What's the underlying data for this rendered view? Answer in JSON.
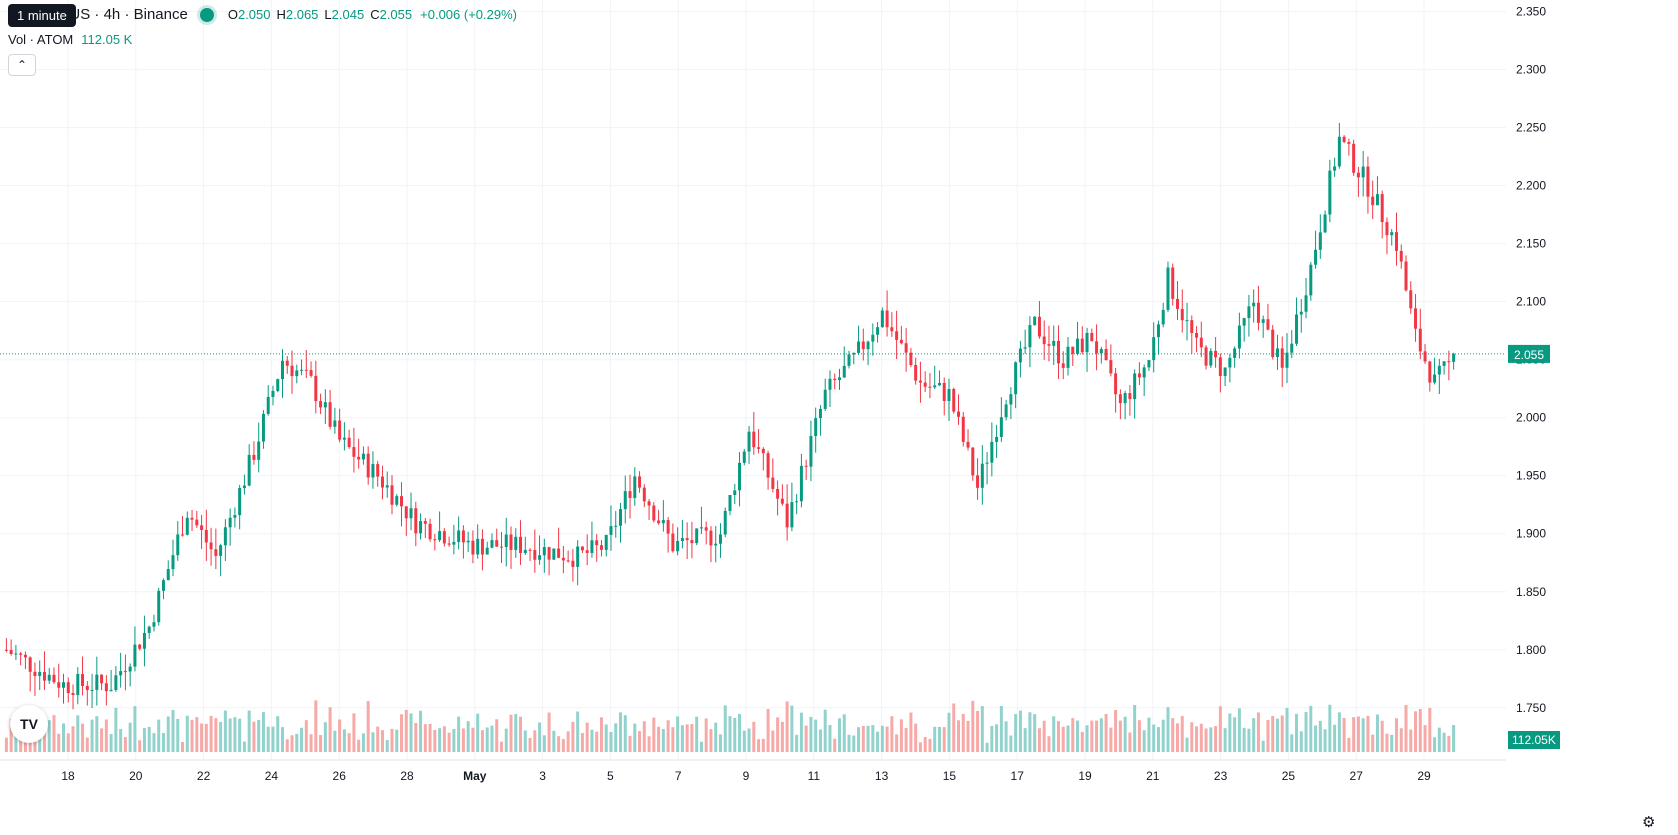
{
  "legend": {
    "symbol": "s / TetherUS · 4h · Binance",
    "open_label": "O",
    "open": "2.050",
    "high_label": "H",
    "high": "2.065",
    "low_label": "L",
    "low": "2.045",
    "close_label": "C",
    "close": "2.055",
    "change": "+0.006 (+0.29%)"
  },
  "tooltip": "1 minute",
  "volume_legend": {
    "label": "Vol · ATOM",
    "value": "112.05 K"
  },
  "collapse_icon": "chevron-up-icon",
  "logo_text": "TV",
  "settings_icon": "gear-icon",
  "colors": {
    "up": "#089981",
    "down": "#F23645",
    "vol_up": "#92D2CC",
    "vol_down": "#F7A9A7"
  },
  "chart_data": {
    "type": "candlestick",
    "y_ticks": [
      "2.350",
      "2.300",
      "2.250",
      "2.200",
      "2.150",
      "2.100",
      "2.050",
      "2.000",
      "1.950",
      "1.900",
      "1.850",
      "1.800",
      "1.750"
    ],
    "ylim": [
      1.705,
      2.36
    ],
    "x_ticks": [
      "18",
      "20",
      "22",
      "24",
      "26",
      "28",
      "May",
      "3",
      "5",
      "7",
      "9",
      "11",
      "13",
      "15",
      "17",
      "19",
      "21",
      "23",
      "25",
      "27",
      "29"
    ],
    "last_price": "2.055",
    "last_volume": "112.05K",
    "trend_anchors": [
      [
        0,
        1.8
      ],
      [
        12,
        1.77
      ],
      [
        22,
        1.77
      ],
      [
        30,
        1.82
      ],
      [
        38,
        1.92
      ],
      [
        44,
        1.88
      ],
      [
        52,
        1.97
      ],
      [
        58,
        2.05
      ],
      [
        64,
        2.03
      ],
      [
        70,
        1.98
      ],
      [
        78,
        1.95
      ],
      [
        86,
        1.91
      ],
      [
        98,
        1.89
      ],
      [
        108,
        1.89
      ],
      [
        120,
        1.88
      ],
      [
        126,
        1.89
      ],
      [
        132,
        1.95
      ],
      [
        140,
        1.89
      ],
      [
        150,
        1.9
      ],
      [
        156,
        1.99
      ],
      [
        164,
        1.91
      ],
      [
        172,
        2.02
      ],
      [
        178,
        2.05
      ],
      [
        184,
        2.09
      ],
      [
        192,
        2.03
      ],
      [
        198,
        2.02
      ],
      [
        204,
        1.94
      ],
      [
        210,
        2.02
      ],
      [
        216,
        2.08
      ],
      [
        222,
        2.05
      ],
      [
        228,
        2.07
      ],
      [
        234,
        2.01
      ],
      [
        240,
        2.05
      ],
      [
        244,
        2.12
      ],
      [
        250,
        2.06
      ],
      [
        256,
        2.04
      ],
      [
        262,
        2.1
      ],
      [
        268,
        2.04
      ],
      [
        274,
        2.13
      ],
      [
        280,
        2.24
      ],
      [
        286,
        2.2
      ],
      [
        292,
        2.15
      ],
      [
        296,
        2.07
      ],
      [
        300,
        2.03
      ],
      [
        304,
        2.05
      ]
    ]
  }
}
